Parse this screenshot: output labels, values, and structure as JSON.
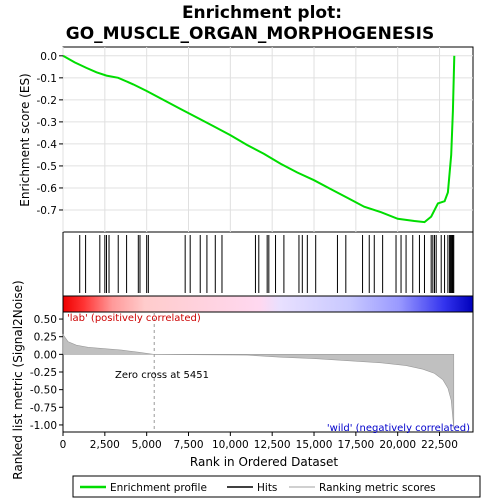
{
  "chart_data": {
    "type": "line",
    "title_lines": [
      "Enrichment plot:",
      "GO_MUSCLE_ORGAN_MORPHOGENESIS"
    ],
    "x_label": "Rank in Ordered Dataset",
    "x_range": [
      0,
      24500
    ],
    "x_ticks": [
      0,
      2500,
      5000,
      7500,
      10000,
      12500,
      15000,
      17500,
      20000,
      22500
    ],
    "x_tick_labels": [
      "0",
      "2,500",
      "5,000",
      "7,500",
      "10,000",
      "12,500",
      "15,000",
      "17,500",
      "20,000",
      "22,500"
    ],
    "enrichment": {
      "y_label": "Enrichment score (ES)",
      "y_range": [
        -0.8,
        0.04
      ],
      "y_ticks": [
        0.0,
        -0.1,
        -0.2,
        -0.3,
        -0.4,
        -0.5,
        -0.6,
        -0.7
      ],
      "y_tick_labels": [
        "0.0",
        "-0.1",
        "-0.2",
        "-0.3",
        "-0.4",
        "-0.5",
        "-0.6",
        "-0.7"
      ],
      "series_name": "Enrichment profile",
      "color": "#00dd00",
      "points": [
        [
          0,
          0.0
        ],
        [
          700,
          -0.03
        ],
        [
          1400,
          -0.055
        ],
        [
          2000,
          -0.075
        ],
        [
          2600,
          -0.09
        ],
        [
          3300,
          -0.1
        ],
        [
          4200,
          -0.13
        ],
        [
          5000,
          -0.16
        ],
        [
          6000,
          -0.2
        ],
        [
          7000,
          -0.24
        ],
        [
          8000,
          -0.28
        ],
        [
          9000,
          -0.32
        ],
        [
          10000,
          -0.36
        ],
        [
          11000,
          -0.405
        ],
        [
          12000,
          -0.445
        ],
        [
          13000,
          -0.49
        ],
        [
          14000,
          -0.53
        ],
        [
          15000,
          -0.565
        ],
        [
          16000,
          -0.605
        ],
        [
          17000,
          -0.645
        ],
        [
          18000,
          -0.685
        ],
        [
          19000,
          -0.71
        ],
        [
          20000,
          -0.74
        ],
        [
          21000,
          -0.75
        ],
        [
          21600,
          -0.755
        ],
        [
          22000,
          -0.73
        ],
        [
          22400,
          -0.67
        ],
        [
          22800,
          -0.66
        ],
        [
          23000,
          -0.62
        ],
        [
          23200,
          -0.45
        ],
        [
          23300,
          -0.25
        ],
        [
          23380,
          0.0
        ]
      ]
    },
    "hits": [
      1000,
      1350,
      2200,
      2500,
      2600,
      2750,
      3300,
      3800,
      4500,
      4600,
      5000,
      5100,
      7300,
      7600,
      8200,
      8600,
      9100,
      9500,
      11500,
      11700,
      12200,
      12300,
      12700,
      13200,
      14100,
      14300,
      14600,
      15100,
      16400,
      16900,
      17900,
      18300,
      18600,
      19100,
      19900,
      20200,
      20500,
      20900,
      21300,
      21600,
      22000,
      22100,
      22200,
      22300,
      22600,
      22800,
      23000,
      23100,
      23150,
      23200,
      23250,
      23300,
      23350
    ],
    "ranked_metric": {
      "y_label": "Ranked list metric (Signal2Noise)",
      "y_range": [
        -1.1,
        0.6
      ],
      "y_ticks": [
        0.5,
        0.25,
        0.0,
        -0.25,
        -0.5,
        -0.75,
        -1.0
      ],
      "y_tick_labels": [
        "0.50",
        "0.25",
        "0.00",
        "-0.25",
        "-0.50",
        "-0.75",
        "-1.00"
      ],
      "series_name": "Ranking metric scores",
      "color": "#c0c0c0",
      "points": [
        [
          0,
          0.28
        ],
        [
          300,
          0.18
        ],
        [
          800,
          0.13
        ],
        [
          1500,
          0.1
        ],
        [
          2500,
          0.08
        ],
        [
          3500,
          0.06
        ],
        [
          4500,
          0.03
        ],
        [
          5451,
          0.0
        ],
        [
          11000,
          -0.01
        ],
        [
          13000,
          -0.04
        ],
        [
          15000,
          -0.06
        ],
        [
          17000,
          -0.09
        ],
        [
          19000,
          -0.12
        ],
        [
          20500,
          -0.16
        ],
        [
          21500,
          -0.21
        ],
        [
          22200,
          -0.27
        ],
        [
          22700,
          -0.36
        ],
        [
          23000,
          -0.48
        ],
        [
          23200,
          -0.65
        ],
        [
          23350,
          -1.05
        ]
      ]
    },
    "annotations": {
      "zero_cross": "Zero cross at 5451",
      "zero_cross_rank": 5451,
      "positive_label": "'lab' (positively correlated)",
      "negative_label": "'wild' (negatively correlated)",
      "positive_color": "#cc0000",
      "negative_color": "#0000cc"
    },
    "legend": {
      "placement": "bottom",
      "entries": [
        {
          "name": "Enrichment profile",
          "color": "#00dd00"
        },
        {
          "name": "Hits",
          "color": "#000000"
        },
        {
          "name": "Ranking metric scores",
          "color": "#c0c0c0"
        }
      ]
    }
  }
}
